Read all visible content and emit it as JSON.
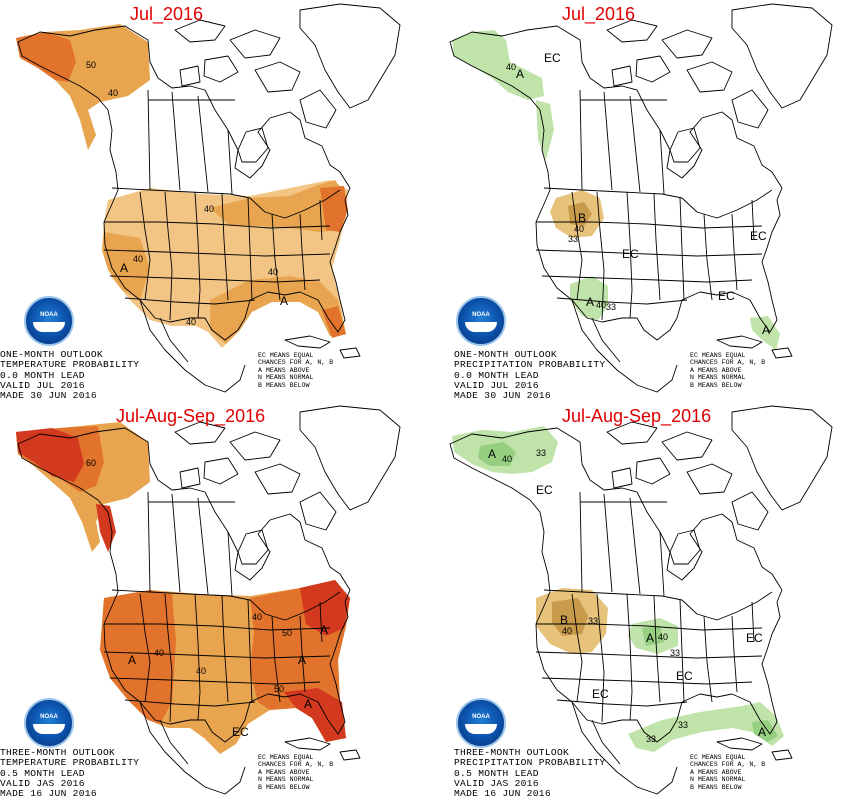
{
  "colors": {
    "above_light": "#f3c585",
    "above_mid": "#e8a44f",
    "above_strong": "#e2732c",
    "above_max": "#d2391e",
    "below_light": "#e6c27a",
    "below_mid": "#c89a4b",
    "wet_light": "#bfe3a8",
    "wet_mid": "#95cf7f",
    "title_red": "#e00000",
    "noaa_blue": "#0b4fa8"
  },
  "panels": [
    {
      "title": "Jul_2016",
      "caption": [
        "ONE-MONTH OUTLOOK",
        "TEMPERATURE PROBABILITY",
        "0.0 MONTH LEAD",
        "VALID JUL 2016",
        "MADE 30 JUN 2016"
      ],
      "labels": [
        "A",
        "A",
        "40",
        "40",
        "40",
        "40",
        "50",
        "40"
      ]
    },
    {
      "title": "Jul_2016",
      "caption": [
        "ONE-MONTH OUTLOOK",
        "PRECIPITATION PROBABILITY",
        "0.0 MONTH LEAD",
        "VALID JUL 2016",
        "MADE 30 JUN 2016"
      ],
      "labels": [
        "EC",
        "A",
        "40",
        "B",
        "40",
        "33",
        "EC",
        "EC",
        "A",
        "40",
        "33",
        "EC",
        "A"
      ]
    },
    {
      "title": "Jul-Aug-Sep_2016",
      "caption": [
        "THREE-MONTH OUTLOOK",
        "TEMPERATURE PROBABILITY",
        "0.5 MONTH LEAD",
        "VALID JAS 2016",
        "MADE 16 JUN 2016"
      ],
      "labels": [
        "60",
        "A",
        "40",
        "40",
        "50",
        "A",
        "40",
        "A",
        "50",
        "A",
        "EC"
      ]
    },
    {
      "title": "Jul-Aug-Sep_2016",
      "caption": [
        "THREE-MONTH OUTLOOK",
        "PRECIPITATION PROBABILITY",
        "0.5 MONTH LEAD",
        "VALID JAS 2016",
        "MADE 16 JUN 2016"
      ],
      "labels": [
        "A",
        "40",
        "33",
        "EC",
        "B",
        "40",
        "33",
        "A",
        "40",
        "33",
        "EC",
        "EC",
        "EC",
        "33",
        "33",
        "A"
      ]
    }
  ],
  "legend": [
    "EC MEANS EQUAL",
    "CHANCES FOR A, N, B",
    "A MEANS ABOVE",
    "N MEANS NORMAL",
    "B MEANS BELOW"
  ],
  "logo_text": "NOAA"
}
